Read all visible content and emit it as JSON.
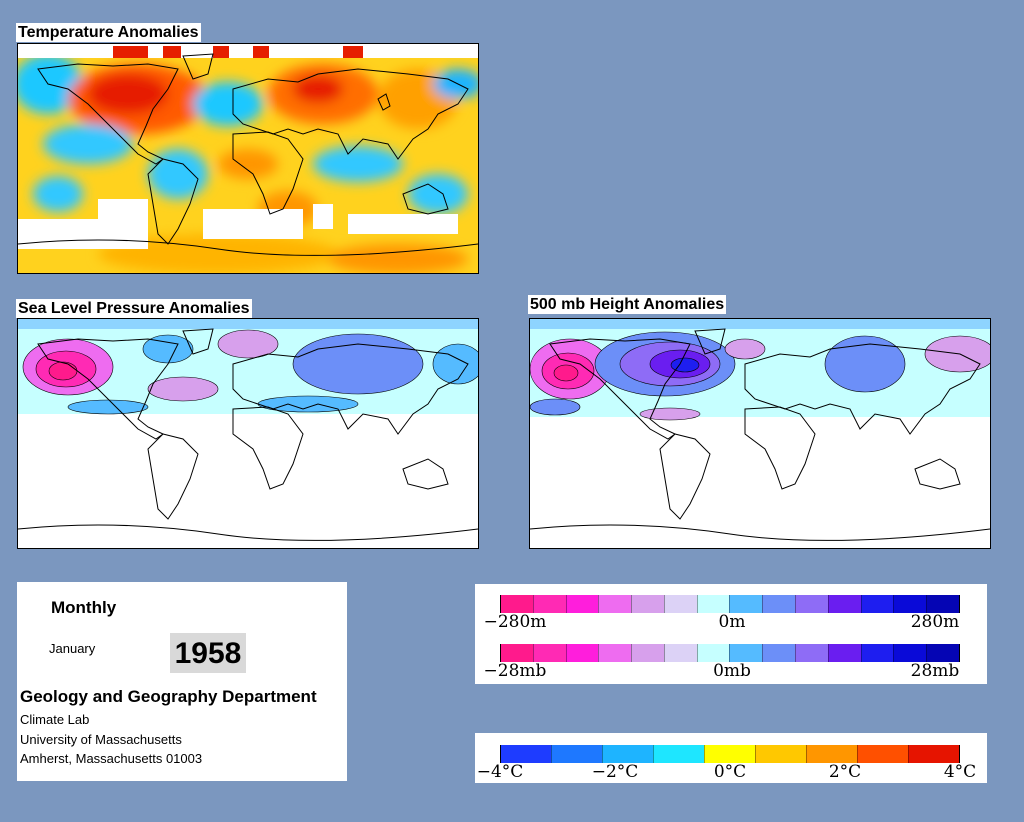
{
  "panels": {
    "temperature": {
      "title": "Temperature Anomalies"
    },
    "slp": {
      "title": "Sea Level Pressure Anomalies"
    },
    "height500": {
      "title": "500 mb Height Anomalies"
    }
  },
  "info": {
    "period": "Monthly",
    "month": "January",
    "year": "1958",
    "department": "Geology and Geography Department",
    "address_lines": [
      "Climate Lab",
      "University of Massachusetts",
      "Amherst, Massachusetts 01003"
    ]
  },
  "legends": {
    "height": {
      "labels": [
        "−280m",
        "0m",
        "280m"
      ]
    },
    "pressure": {
      "labels": [
        "−28mb",
        "0mb",
        "28mb"
      ]
    },
    "temperature": {
      "labels": [
        "−4°C",
        "−2°C",
        "0°C",
        "2°C",
        "4°C"
      ]
    }
  },
  "colors": {
    "background": "#7b97bf",
    "anomaly_scale_pos": [
      "#ff1a8c",
      "#ff2ab4",
      "#ff1edc",
      "#ee6cf0",
      "#d7a0ec",
      "#dcd2f6",
      "#c6ffff",
      "#55bbff",
      "#6c8ff8",
      "#8e6cf6",
      "#6a1ef0",
      "#1e1ef0",
      "#0a0ad8",
      "#0505b4"
    ],
    "temperature_scale": [
      "#1e3cff",
      "#1e78ff",
      "#1eb4ff",
      "#1ee6ff",
      "#ffff00",
      "#ffc800",
      "#ff9600",
      "#ff5000",
      "#e61400"
    ]
  }
}
